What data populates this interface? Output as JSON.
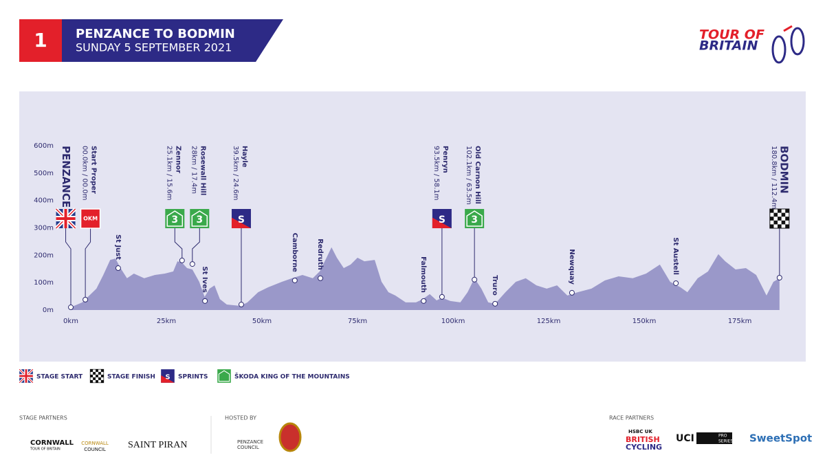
{
  "header": {
    "stage": "1",
    "title": "PENZANCE TO BODMIN",
    "subtitle": "SUNDAY 5 SEPTEMBER 2021",
    "logo": [
      "TOUR OF",
      "BRITAIN"
    ]
  },
  "chart_data": {
    "type": "area",
    "color": "#9a98c9",
    "x": [
      0,
      3,
      6.7,
      8.5,
      10.3,
      11.7,
      13,
      14.7,
      16.5,
      19.2,
      22,
      24.6,
      26.8,
      27.9,
      29.1,
      30.4,
      31.8,
      33.6,
      35,
      36.3,
      37.6,
      39,
      40.8,
      44.4,
      46.2,
      49,
      51.6,
      55.2,
      57.9,
      60.6,
      63.3,
      65.1,
      66.9,
      68.2,
      69.6,
      71.4,
      73.2,
      75,
      76.8,
      79.5,
      81.3,
      83.1,
      84.9,
      87.6,
      90.3,
      92.1,
      93.9,
      95.7,
      97.1,
      99.3,
      101.9,
      103.8,
      105.6,
      107.4,
      109.2,
      111,
      113.7,
      116.4,
      119,
      121.8,
      124.5,
      127.2,
      129.9,
      132.6,
      136.2,
      139.7,
      143.3,
      147,
      150.5,
      154.1,
      156.8,
      159.5,
      161.3,
      164,
      166.7,
      169.4,
      171.2,
      173.9,
      176.6,
      179.3,
      182,
      183.8,
      185.4
    ],
    "values": [
      10,
      28,
      78,
      128,
      183,
      188,
      153,
      116,
      133,
      116,
      128,
      133,
      141,
      178,
      173,
      153,
      148,
      103,
      48,
      78,
      90,
      40,
      20,
      15,
      28,
      65,
      83,
      103,
      116,
      128,
      116,
      141,
      191,
      229,
      191,
      153,
      166,
      191,
      178,
      183,
      103,
      65,
      53,
      28,
      28,
      40,
      58,
      35,
      45,
      33,
      28,
      65,
      116,
      78,
      28,
      23,
      65,
      103,
      116,
      90,
      78,
      90,
      53,
      65,
      78,
      108,
      123,
      116,
      133,
      166,
      103,
      83,
      65,
      116,
      141,
      204,
      178,
      148,
      153,
      128,
      53,
      103,
      116
    ],
    "xlim": [
      0,
      186
    ],
    "ylim": [
      0,
      600
    ],
    "xticks": [
      {
        "value": 0,
        "label": "0km"
      },
      {
        "value": 25,
        "label": "25km"
      },
      {
        "value": 50,
        "label": "50km"
      },
      {
        "value": 75,
        "label": "75km"
      },
      {
        "value": 100,
        "label": "100km"
      },
      {
        "value": 125,
        "label": "125km"
      },
      {
        "value": 150,
        "label": "150km"
      },
      {
        "value": 175,
        "label": "175km"
      }
    ],
    "yticks": [
      {
        "value": 0,
        "label": "0m"
      },
      {
        "value": 100,
        "label": "100m"
      },
      {
        "value": 200,
        "label": "200m"
      },
      {
        "value": 300,
        "label": "300m"
      },
      {
        "value": 400,
        "label": "400m"
      },
      {
        "value": 500,
        "label": "500m"
      },
      {
        "value": 600,
        "label": "600m"
      }
    ],
    "waypoints": [
      {
        "name": "PENZANCE",
        "km": 0,
        "elevation": 10,
        "icon": "start",
        "major": true
      },
      {
        "name": "Start Proper",
        "distance": "00.0km / 00.0m",
        "km": 3.8,
        "elevation": 38,
        "icon": "okm",
        "icon_text": "OKM"
      },
      {
        "name": "St Just",
        "km": 12.4,
        "elevation": 153
      },
      {
        "name": "Zennor",
        "distance": "25.1km / 15.6m",
        "km": 29.1,
        "elevation": 181,
        "icon": "kom",
        "icon_text": "3"
      },
      {
        "name": "Rosewall Hill",
        "distance": "28km / 17.4m",
        "km": 31.8,
        "elevation": 168,
        "icon": "kom",
        "icon_text": "3"
      },
      {
        "name": "St Ives",
        "km": 35.1,
        "elevation": 33
      },
      {
        "name": "Hayle",
        "distance": "39.5km / 24.6m",
        "km": 44.6,
        "elevation": 20,
        "icon": "sprint",
        "icon_text": "S"
      },
      {
        "name": "Camborne",
        "km": 58.6,
        "elevation": 108
      },
      {
        "name": "Redruth",
        "km": 65.3,
        "elevation": 116
      },
      {
        "name": "Falmouth",
        "km": 92.3,
        "elevation": 33
      },
      {
        "name": "Penryn",
        "distance": "93.5km / 58.1m",
        "km": 97.1,
        "elevation": 48,
        "icon": "sprint",
        "icon_text": "S"
      },
      {
        "name": "Old Carnon Hill",
        "distance": "102.1km / 63.5m",
        "km": 105.6,
        "elevation": 111,
        "icon": "kom",
        "icon_text": "3"
      },
      {
        "name": "Truro",
        "km": 111,
        "elevation": 23
      },
      {
        "name": "Newquay",
        "km": 131.1,
        "elevation": 63
      },
      {
        "name": "St Austell",
        "km": 158.3,
        "elevation": 98
      },
      {
        "name": "BODMIN",
        "distance": "180.8km / 112.4m",
        "km": 185.4,
        "elevation": 118,
        "icon": "finish",
        "major": true
      }
    ]
  },
  "legend": [
    {
      "icon": "start",
      "label": "STAGE START"
    },
    {
      "icon": "finish",
      "label": "STAGE FINISH"
    },
    {
      "icon": "sprint",
      "icon_text": "S",
      "label": "SPRINTS"
    },
    {
      "icon": "kom",
      "label": "ŠKODA KING OF THE MOUNTAINS"
    }
  ],
  "partners": {
    "stage_heading": "STAGE PARTNERS",
    "hosted_heading": "HOSTED BY",
    "race_heading": "RACE PARTNERS",
    "cornwall": [
      "CORNWALL",
      "TOUR OF BRITAIN"
    ],
    "council": [
      "CORNWALL",
      "COUNCIL"
    ],
    "piran": "SAINT PIRAN",
    "penzance": [
      "PENZANCE",
      "COUNCIL"
    ],
    "hsbc": "HSBC UK",
    "british": [
      "BRITISH",
      "CYCLING"
    ],
    "uci": "UCI",
    "pro": [
      "PRO",
      "SERIES"
    ],
    "sweetspot": "SweetSpot"
  }
}
